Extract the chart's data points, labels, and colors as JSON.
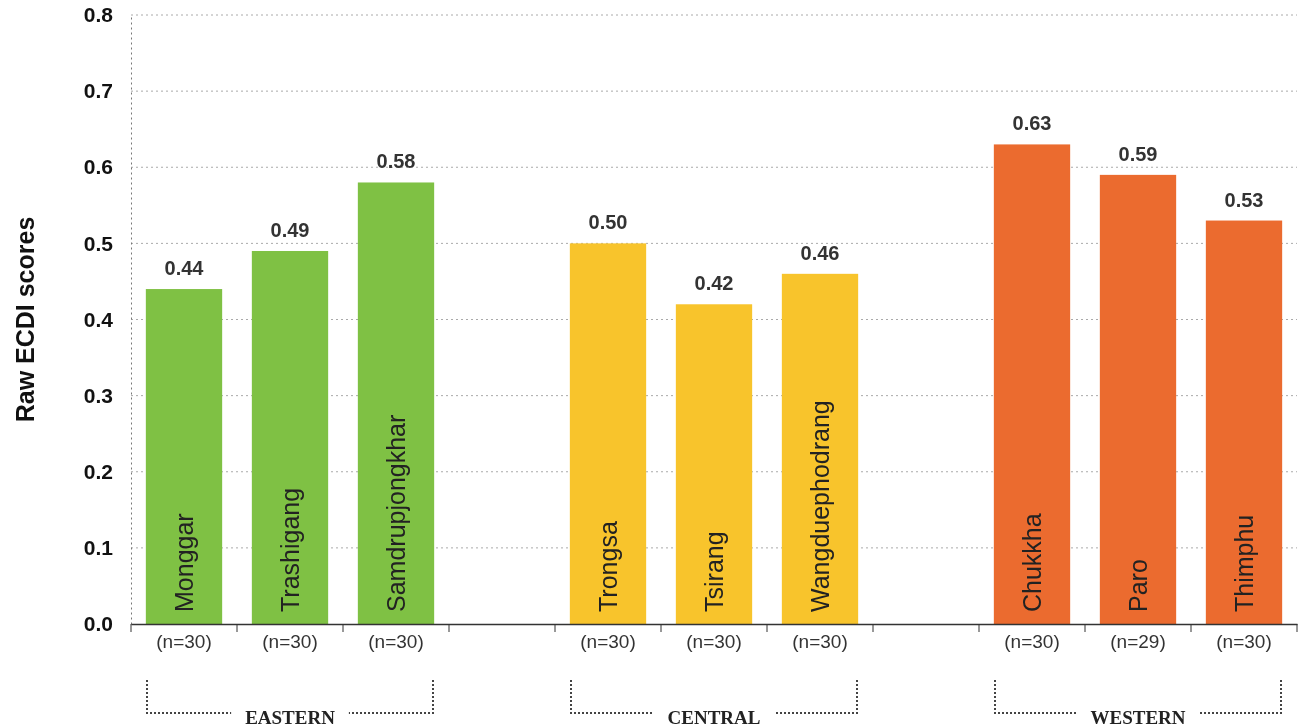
{
  "chart_data": {
    "type": "bar",
    "ylabel": "Raw ECDI scores",
    "categories": [
      "Monggar",
      "Trashigang",
      "Samdrupjongkhar",
      null,
      "Trongsa",
      "Tsirang",
      "Wangduephodrang",
      null,
      "Chukkha",
      "Paro",
      "Thimphu"
    ],
    "values": [
      0.44,
      0.49,
      0.58,
      null,
      0.5,
      0.42,
      0.46,
      null,
      0.63,
      0.59,
      0.53
    ],
    "value_labels": [
      "0.44",
      "0.49",
      "0.58",
      null,
      "0.50",
      "0.42",
      "0.46",
      null,
      "0.63",
      "0.59",
      "0.53"
    ],
    "colors": [
      "#7fc144",
      "#7fc144",
      "#7fc144",
      null,
      "#f8c42c",
      "#f8c42c",
      "#f8c42c",
      null,
      "#eb6b2f",
      "#eb6b2f",
      "#eb6b2f"
    ],
    "ylim": [
      0,
      0.8
    ],
    "yticks": [
      {
        "value": 0,
        "label": "0.0"
      },
      0.1,
      0.2,
      0.3,
      0.4,
      0.5,
      0.6,
      0.7,
      0.8
    ],
    "grid": "y",
    "annotations": [
      {
        "text": "(n=30)",
        "x": "Monggar",
        "y": 0
      },
      {
        "text": "(n=30)",
        "x": "Trashigang",
        "y": 0
      },
      {
        "text": "(n=30)",
        "x": "Samdrupjongkhar",
        "y": 0
      },
      {
        "text": "(n=30)",
        "x": "Trongsa",
        "y": 0
      },
      {
        "text": "(n=30)",
        "x": "Tsirang",
        "y": 0
      },
      {
        "text": "(n=30)",
        "x": "Wangduephodrang",
        "y": 0
      },
      {
        "text": "(n=30)",
        "x": "Chukkha",
        "y": 0
      },
      {
        "text": "(n=29)",
        "x": "Paro",
        "y": 0
      },
      {
        "text": "(n=30)",
        "x": "Thimphu",
        "y": 0
      },
      "EASTERN",
      "CENTRAL",
      "WESTERN"
    ]
  }
}
